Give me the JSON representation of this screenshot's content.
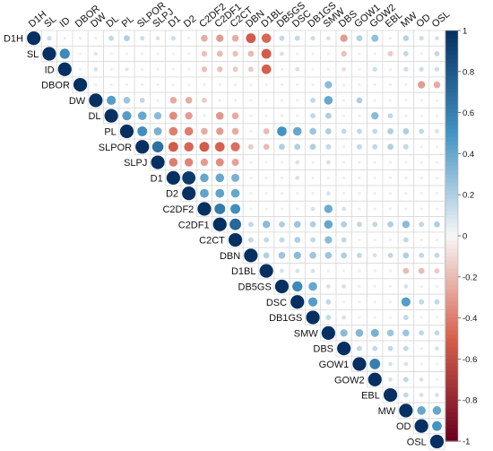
{
  "chart_data": {
    "type": "correlation-matrix",
    "matrix_shape": "upper-triangle",
    "variables": [
      "D1H",
      "SL",
      "ID",
      "DBOR",
      "DW",
      "DL",
      "PL",
      "SLPOR",
      "SLPJ",
      "D1",
      "D2",
      "C2DF2",
      "C2DF1",
      "C2CT",
      "DBN",
      "D1BL",
      "DB5GS",
      "DSC",
      "DB1GS",
      "SMW",
      "DBS",
      "GOW1",
      "GOW2",
      "EBL",
      "MW",
      "OD",
      "OSL"
    ],
    "colorbar": {
      "ticks": [
        1,
        0.8,
        0.6,
        0.4,
        0.2,
        0,
        -0.2,
        -0.4,
        -0.6,
        -0.8,
        -1
      ],
      "tick_labels": [
        "1",
        "0.8",
        "0.6",
        "0.4",
        "0.2",
        "0",
        "-0.2",
        "-0.4",
        "-0.6",
        "-0.8",
        "-1"
      ],
      "range": [
        -1,
        1
      ]
    },
    "palette": {
      "neg_strong": "#67001f",
      "neg_mid": "#d6604d",
      "neutral": "#f7f7f7",
      "pos_mid": "#4393c3",
      "pos_strong": "#053061"
    },
    "correlations": [
      {
        "row": "D1H",
        "col": "SL",
        "r": 0.12
      },
      {
        "row": "D1H",
        "col": "DBOR",
        "r": 0.05
      },
      {
        "row": "D1H",
        "col": "DL",
        "r": 0.15
      },
      {
        "row": "D1H",
        "col": "PL",
        "r": 0.2
      },
      {
        "row": "D1H",
        "col": "SLPOR",
        "r": 0.12
      },
      {
        "row": "D1H",
        "col": "SLPJ",
        "r": 0.1
      },
      {
        "row": "D1H",
        "col": "D1",
        "r": 0.12
      },
      {
        "row": "D1H",
        "col": "C2DF2",
        "r": -0.25
      },
      {
        "row": "D1H",
        "col": "C2DF1",
        "r": -0.3
      },
      {
        "row": "D1H",
        "col": "C2CT",
        "r": -0.25
      },
      {
        "row": "D1H",
        "col": "DBN",
        "r": -0.52
      },
      {
        "row": "D1H",
        "col": "D1BL",
        "r": -0.48
      },
      {
        "row": "D1H",
        "col": "DB5GS",
        "r": 0.15
      },
      {
        "row": "D1H",
        "col": "DSC",
        "r": 0.15
      },
      {
        "row": "D1H",
        "col": "DB1GS",
        "r": 0.12
      },
      {
        "row": "D1H",
        "col": "SMW",
        "r": 0.1
      },
      {
        "row": "D1H",
        "col": "DBS",
        "r": -0.3
      },
      {
        "row": "D1H",
        "col": "GOW1",
        "r": 0.2
      },
      {
        "row": "D1H",
        "col": "GOW2",
        "r": 0.28
      },
      {
        "row": "D1H",
        "col": "MW",
        "r": 0.18
      },
      {
        "row": "D1H",
        "col": "OD",
        "r": 0.12
      },
      {
        "row": "D1H",
        "col": "OSL",
        "r": 0.1
      },
      {
        "row": "SL",
        "col": "ID",
        "r": 0.55
      },
      {
        "row": "SL",
        "col": "DW",
        "r": 0.08
      },
      {
        "row": "SL",
        "col": "C2DF2",
        "r": -0.18
      },
      {
        "row": "SL",
        "col": "C2DF1",
        "r": -0.2
      },
      {
        "row": "SL",
        "col": "C2CT",
        "r": -0.18
      },
      {
        "row": "SL",
        "col": "DBN",
        "r": -0.2
      },
      {
        "row": "SL",
        "col": "D1BL",
        "r": -0.52
      },
      {
        "row": "SL",
        "col": "DB5GS",
        "r": 0.1
      },
      {
        "row": "SL",
        "col": "DBS",
        "r": -0.18
      },
      {
        "row": "SL",
        "col": "EBL",
        "r": -0.15
      },
      {
        "row": "SL",
        "col": "MW",
        "r": 0.15
      },
      {
        "row": "SL",
        "col": "OSL",
        "r": 0.15
      },
      {
        "row": "ID",
        "col": "DW",
        "r": 0.1
      },
      {
        "row": "ID",
        "col": "PL",
        "r": 0.08
      },
      {
        "row": "ID",
        "col": "C2DF2",
        "r": -0.18
      },
      {
        "row": "ID",
        "col": "C2DF1",
        "r": -0.18
      },
      {
        "row": "ID",
        "col": "C2CT",
        "r": -0.15
      },
      {
        "row": "ID",
        "col": "DBN",
        "r": -0.15
      },
      {
        "row": "ID",
        "col": "D1BL",
        "r": -0.5
      },
      {
        "row": "ID",
        "col": "DSC",
        "r": 0.1
      },
      {
        "row": "ID",
        "col": "DBS",
        "r": -0.1
      },
      {
        "row": "ID",
        "col": "GOW2",
        "r": 0.12
      },
      {
        "row": "ID",
        "col": "MW",
        "r": 0.12
      },
      {
        "row": "ID",
        "col": "OD",
        "r": 0.12
      },
      {
        "row": "ID",
        "col": "OSL",
        "r": 0.12
      },
      {
        "row": "DBOR",
        "col": "SMW",
        "r": 0.3
      },
      {
        "row": "DBOR",
        "col": "OD",
        "r": -0.3
      },
      {
        "row": "DBOR",
        "col": "OSL",
        "r": -0.25
      },
      {
        "row": "DW",
        "col": "DL",
        "r": 0.45
      },
      {
        "row": "DW",
        "col": "PL",
        "r": 0.25
      },
      {
        "row": "DW",
        "col": "SLPOR",
        "r": 0.15
      },
      {
        "row": "DW",
        "col": "D1",
        "r": -0.25
      },
      {
        "row": "DW",
        "col": "D2",
        "r": -0.25
      },
      {
        "row": "DW",
        "col": "C2DF2",
        "r": -0.15
      },
      {
        "row": "DW",
        "col": "SMW",
        "r": 0.4
      },
      {
        "row": "DW",
        "col": "DB1GS",
        "r": 0.15
      },
      {
        "row": "DW",
        "col": "GOW1",
        "r": 0.2
      },
      {
        "row": "DL",
        "col": "PL",
        "r": 0.45
      },
      {
        "row": "DL",
        "col": "SLPOR",
        "r": 0.4
      },
      {
        "row": "DL",
        "col": "SLPJ",
        "r": 0.3
      },
      {
        "row": "DL",
        "col": "D1",
        "r": -0.35
      },
      {
        "row": "DL",
        "col": "D2",
        "r": -0.3
      },
      {
        "row": "DL",
        "col": "C2DF1",
        "r": -0.32
      },
      {
        "row": "DL",
        "col": "C2CT",
        "r": -0.25
      },
      {
        "row": "DL",
        "col": "DB1GS",
        "r": 0.15
      },
      {
        "row": "DL",
        "col": "SMW",
        "r": 0.2
      },
      {
        "row": "DL",
        "col": "GOW2",
        "r": 0.3
      },
      {
        "row": "DL",
        "col": "EBL",
        "r": 0.15
      },
      {
        "row": "PL",
        "col": "SLPOR",
        "r": 0.52
      },
      {
        "row": "PL",
        "col": "SLPJ",
        "r": 0.35
      },
      {
        "row": "PL",
        "col": "D1",
        "r": -0.4
      },
      {
        "row": "PL",
        "col": "D2",
        "r": -0.4
      },
      {
        "row": "PL",
        "col": "C2DF2",
        "r": -0.25
      },
      {
        "row": "PL",
        "col": "C2DF1",
        "r": -0.3
      },
      {
        "row": "PL",
        "col": "C2CT",
        "r": -0.25
      },
      {
        "row": "PL",
        "col": "D1BL",
        "r": -0.2
      },
      {
        "row": "PL",
        "col": "DB5GS",
        "r": 0.5
      },
      {
        "row": "PL",
        "col": "DSC",
        "r": 0.4
      },
      {
        "row": "PL",
        "col": "DB1GS",
        "r": 0.25
      },
      {
        "row": "PL",
        "col": "SMW",
        "r": 0.2
      },
      {
        "row": "PL",
        "col": "DBS",
        "r": 0.15
      },
      {
        "row": "PL",
        "col": "GOW1",
        "r": 0.15
      },
      {
        "row": "PL",
        "col": "GOW2",
        "r": 0.15
      },
      {
        "row": "PL",
        "col": "EBL",
        "r": 0.2
      },
      {
        "row": "PL",
        "col": "MW",
        "r": 0.2
      },
      {
        "row": "PL",
        "col": "OD",
        "r": 0.15
      },
      {
        "row": "PL",
        "col": "OSL",
        "r": 0.1
      },
      {
        "row": "SLPOR",
        "col": "SLPJ",
        "r": 0.68
      },
      {
        "row": "SLPOR",
        "col": "D1",
        "r": -0.52
      },
      {
        "row": "SLPOR",
        "col": "D2",
        "r": -0.48
      },
      {
        "row": "SLPOR",
        "col": "C2DF2",
        "r": -0.52
      },
      {
        "row": "SLPOR",
        "col": "C2DF1",
        "r": -0.5
      },
      {
        "row": "SLPOR",
        "col": "C2CT",
        "r": -0.45
      },
      {
        "row": "SLPOR",
        "col": "DBN",
        "r": -0.15
      },
      {
        "row": "SLPOR",
        "col": "D1BL",
        "r": -0.2
      },
      {
        "row": "SLPOR",
        "col": "DB5GS",
        "r": 0.2
      },
      {
        "row": "SLPOR",
        "col": "DSC",
        "r": 0.2
      },
      {
        "row": "SLPOR",
        "col": "DB1GS",
        "r": 0.2
      },
      {
        "row": "SLPOR",
        "col": "SMW",
        "r": 0.15
      },
      {
        "row": "SLPOR",
        "col": "GOW1",
        "r": 0.15
      },
      {
        "row": "SLPOR",
        "col": "GOW2",
        "r": 0.15
      },
      {
        "row": "SLPOR",
        "col": "EBL",
        "r": 0.2
      },
      {
        "row": "SLPOR",
        "col": "MW",
        "r": 0.15
      },
      {
        "row": "SLPJ",
        "col": "D1",
        "r": -0.4
      },
      {
        "row": "SLPJ",
        "col": "D2",
        "r": -0.38
      },
      {
        "row": "SLPJ",
        "col": "C2DF2",
        "r": -0.3
      },
      {
        "row": "SLPJ",
        "col": "C2DF1",
        "r": -0.35
      },
      {
        "row": "SLPJ",
        "col": "C2CT",
        "r": -0.28
      },
      {
        "row": "SLPJ",
        "col": "DSC",
        "r": 0.1
      },
      {
        "row": "SLPJ",
        "col": "SMW",
        "r": 0.1
      },
      {
        "row": "D1",
        "col": "D2",
        "r": 0.95
      },
      {
        "row": "D1",
        "col": "C2DF2",
        "r": 0.4
      },
      {
        "row": "D1",
        "col": "C2DF1",
        "r": 0.4
      },
      {
        "row": "D1",
        "col": "C2CT",
        "r": 0.35
      },
      {
        "row": "D1",
        "col": "DSC",
        "r": 0.1
      },
      {
        "row": "D2",
        "col": "C2DF2",
        "r": 0.42
      },
      {
        "row": "D2",
        "col": "C2DF1",
        "r": 0.42
      },
      {
        "row": "D2",
        "col": "C2CT",
        "r": 0.4
      },
      {
        "row": "D2",
        "col": "SMW",
        "r": 0.1
      },
      {
        "row": "C2DF2",
        "col": "C2DF1",
        "r": 0.62
      },
      {
        "row": "C2DF2",
        "col": "C2CT",
        "r": 0.52
      },
      {
        "row": "C2DF2",
        "col": "DB1GS",
        "r": 0.1
      },
      {
        "row": "C2DF2",
        "col": "SMW",
        "r": 0.38
      },
      {
        "row": "C2DF2",
        "col": "DBS",
        "r": 0.1
      },
      {
        "row": "C2DF1",
        "col": "C2CT",
        "r": 0.72
      },
      {
        "row": "C2DF1",
        "col": "DBN",
        "r": 0.15
      },
      {
        "row": "C2DF1",
        "col": "D1BL",
        "r": 0.3
      },
      {
        "row": "C2DF1",
        "col": "DB5GS",
        "r": 0.2
      },
      {
        "row": "C2DF1",
        "col": "DSC",
        "r": 0.25
      },
      {
        "row": "C2DF1",
        "col": "DB1GS",
        "r": 0.2
      },
      {
        "row": "C2DF1",
        "col": "SMW",
        "r": 0.4
      },
      {
        "row": "C2DF1",
        "col": "DBS",
        "r": 0.2
      },
      {
        "row": "C2DF1",
        "col": "GOW1",
        "r": 0.15
      },
      {
        "row": "C2DF1",
        "col": "GOW2",
        "r": 0.15
      },
      {
        "row": "C2DF1",
        "col": "EBL",
        "r": 0.2
      },
      {
        "row": "C2DF1",
        "col": "MW",
        "r": 0.3
      },
      {
        "row": "C2DF1",
        "col": "OD",
        "r": 0.15
      },
      {
        "row": "C2DF1",
        "col": "OSL",
        "r": 0.2
      },
      {
        "row": "C2CT",
        "col": "DBN",
        "r": 0.15
      },
      {
        "row": "C2CT",
        "col": "D1BL",
        "r": 0.15
      },
      {
        "row": "C2CT",
        "col": "DB5GS",
        "r": 0.15
      },
      {
        "row": "C2CT",
        "col": "DSC",
        "r": 0.2
      },
      {
        "row": "C2CT",
        "col": "DB1GS",
        "r": 0.15
      },
      {
        "row": "C2CT",
        "col": "SMW",
        "r": 0.3
      },
      {
        "row": "C2CT",
        "col": "DBS",
        "r": 0.15
      },
      {
        "row": "C2CT",
        "col": "MW",
        "r": 0.15
      },
      {
        "row": "DBN",
        "col": "D1BL",
        "r": 0.2
      },
      {
        "row": "DBN",
        "col": "DB5GS",
        "r": 0.25
      },
      {
        "row": "DBN",
        "col": "DSC",
        "r": 0.3
      },
      {
        "row": "DBN",
        "col": "DB1GS",
        "r": 0.25
      },
      {
        "row": "DBN",
        "col": "SMW",
        "r": 0.25
      },
      {
        "row": "DBN",
        "col": "DBS",
        "r": 0.2
      },
      {
        "row": "DBN",
        "col": "GOW1",
        "r": 0.15
      },
      {
        "row": "DBN",
        "col": "GOW2",
        "r": 0.1
      },
      {
        "row": "DBN",
        "col": "EBL",
        "r": 0.15
      },
      {
        "row": "DBN",
        "col": "MW",
        "r": 0.2
      },
      {
        "row": "DBN",
        "col": "OD",
        "r": 0.15
      },
      {
        "row": "DBN",
        "col": "OSL",
        "r": 0.15
      },
      {
        "row": "D1BL",
        "col": "DB5GS",
        "r": 0.1
      },
      {
        "row": "D1BL",
        "col": "DSC",
        "r": 0.1
      },
      {
        "row": "D1BL",
        "col": "DB1GS",
        "r": 0.1
      },
      {
        "row": "D1BL",
        "col": "MW",
        "r": -0.2
      },
      {
        "row": "D1BL",
        "col": "OD",
        "r": -0.2
      },
      {
        "row": "D1BL",
        "col": "OSL",
        "r": -0.15
      },
      {
        "row": "DB5GS",
        "col": "DSC",
        "r": 0.55
      },
      {
        "row": "DB5GS",
        "col": "DB1GS",
        "r": 0.4
      },
      {
        "row": "DB5GS",
        "col": "SMW",
        "r": 0.1
      },
      {
        "row": "DB5GS",
        "col": "DBS",
        "r": 0.1
      },
      {
        "row": "DB5GS",
        "col": "MW",
        "r": 0.1
      },
      {
        "row": "DSC",
        "col": "DB1GS",
        "r": 0.45
      },
      {
        "row": "DSC",
        "col": "SMW",
        "r": 0.15
      },
      {
        "row": "DSC",
        "col": "MW",
        "r": 0.45
      },
      {
        "row": "DSC",
        "col": "OD",
        "r": 0.15
      },
      {
        "row": "DSC",
        "col": "OSL",
        "r": 0.15
      },
      {
        "row": "DB1GS",
        "col": "SMW",
        "r": 0.15
      },
      {
        "row": "DB1GS",
        "col": "DBS",
        "r": 0.1
      },
      {
        "row": "DB1GS",
        "col": "MW",
        "r": 0.15
      },
      {
        "row": "SMW",
        "col": "DBS",
        "r": 0.3
      },
      {
        "row": "SMW",
        "col": "GOW1",
        "r": 0.32
      },
      {
        "row": "SMW",
        "col": "GOW2",
        "r": 0.35
      },
      {
        "row": "SMW",
        "col": "EBL",
        "r": 0.25
      },
      {
        "row": "SMW",
        "col": "MW",
        "r": 0.25
      },
      {
        "row": "SMW",
        "col": "OD",
        "r": 0.15
      },
      {
        "row": "SMW",
        "col": "OSL",
        "r": 0.15
      },
      {
        "row": "DBS",
        "col": "GOW1",
        "r": 0.15
      },
      {
        "row": "DBS",
        "col": "GOW2",
        "r": 0.15
      },
      {
        "row": "DBS",
        "col": "EBL",
        "r": 0.15
      },
      {
        "row": "DBS",
        "col": "MW",
        "r": 0.15
      },
      {
        "row": "DBS",
        "col": "OSL",
        "r": 0.1
      },
      {
        "row": "GOW1",
        "col": "GOW2",
        "r": 0.6
      },
      {
        "row": "GOW1",
        "col": "EBL",
        "r": 0.1
      },
      {
        "row": "GOW1",
        "col": "MW",
        "r": 0.1
      },
      {
        "row": "GOW2",
        "col": "EBL",
        "r": 0.1
      },
      {
        "row": "GOW2",
        "col": "MW",
        "r": 0.15
      },
      {
        "row": "GOW2",
        "col": "OD",
        "r": 0.1
      },
      {
        "row": "EBL",
        "col": "MW",
        "r": 0.15
      },
      {
        "row": "EBL",
        "col": "OD",
        "r": 0.1
      },
      {
        "row": "EBL",
        "col": "OSL",
        "r": 0.1
      },
      {
        "row": "MW",
        "col": "OD",
        "r": 0.4
      },
      {
        "row": "MW",
        "col": "OSL",
        "r": 0.4
      },
      {
        "row": "OD",
        "col": "OSL",
        "r": 0.5
      }
    ]
  }
}
